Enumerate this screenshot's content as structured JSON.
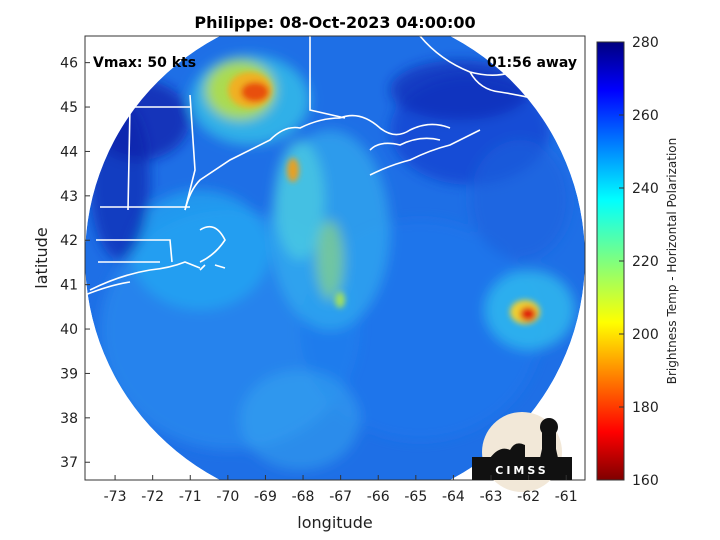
{
  "map": {
    "title": "Philippe: 08-Oct-2023 04:00:00",
    "vmax_text": "Vmax: 50 kts",
    "time_away_text": "01:56 away",
    "xlabel": "longitude",
    "ylabel": "latitude",
    "lon_ticks": [
      "-73",
      "-72",
      "-71",
      "-70",
      "-69",
      "-68",
      "-67",
      "-66",
      "-65",
      "-64",
      "-63",
      "-62",
      "-61"
    ],
    "lat_ticks": [
      "46",
      "45",
      "44",
      "43",
      "42",
      "41",
      "40",
      "39",
      "38",
      "37"
    ],
    "lon_range": [
      -73.8,
      -60.5
    ],
    "lat_range": [
      36.6,
      46.6
    ],
    "colorbar": {
      "label": "Brightness Temp - Horizontal Polarization",
      "ticks": [
        "280",
        "260",
        "240",
        "220",
        "200",
        "180",
        "160"
      ],
      "range": [
        160,
        280
      ],
      "colormap": "jet"
    },
    "logo_text": "CIMSS",
    "colors": {
      "background": "#ffffff",
      "coastline": "#ffffff",
      "cold": "#7f0000",
      "warm": "#00007f"
    }
  }
}
